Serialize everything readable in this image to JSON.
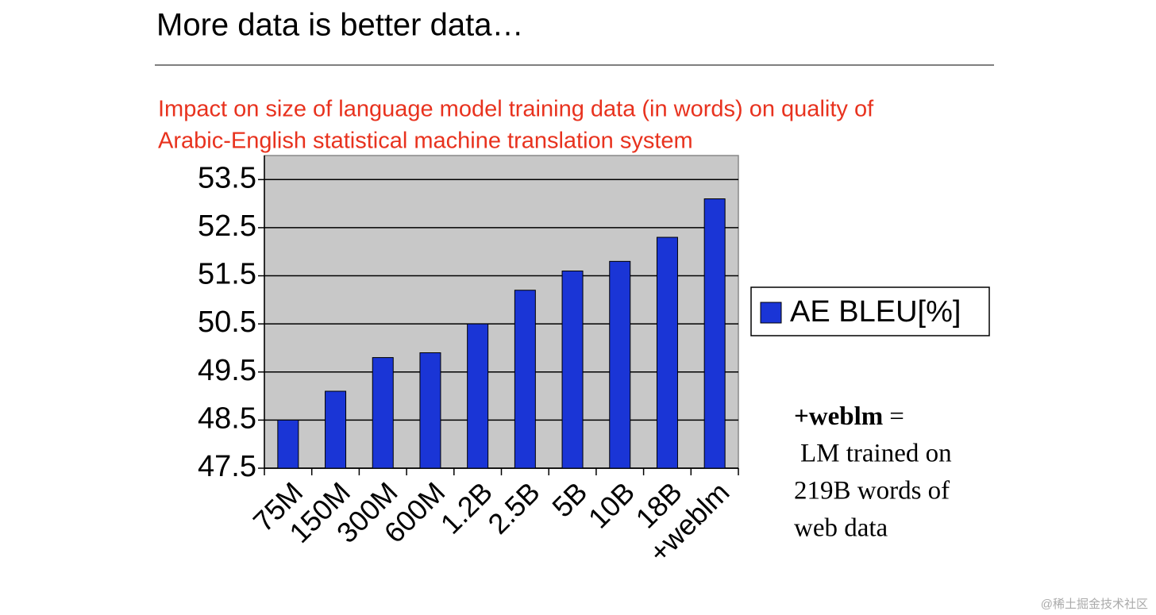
{
  "chart_data": {
    "type": "bar",
    "title": "More data is better data…",
    "subtitle": [
      "Impact on size of language model training data (in words) on quality of",
      "Arabic-English statistical machine translation system"
    ],
    "categories": [
      "75M",
      "150M",
      "300M",
      "600M",
      "1.2B",
      "2.5B",
      "5B",
      "10B",
      "18B",
      "+weblm"
    ],
    "series": [
      {
        "name": "AE BLEU[%]",
        "color": "#1a35d6",
        "values": [
          48.5,
          49.1,
          49.8,
          49.9,
          50.5,
          51.2,
          51.6,
          51.8,
          52.3,
          53.1
        ]
      }
    ],
    "ylim": [
      47.5,
      54
    ],
    "yticks": [
      47.5,
      48.5,
      49.5,
      50.5,
      51.5,
      52.5,
      53.5
    ],
    "grid": true,
    "legend": "right",
    "annotation": {
      "term": "+weblm",
      "lines": [
        "=",
        "LM trained on",
        "219B words of",
        "web data"
      ]
    },
    "watermark": "@稀土掘金技术社区"
  }
}
